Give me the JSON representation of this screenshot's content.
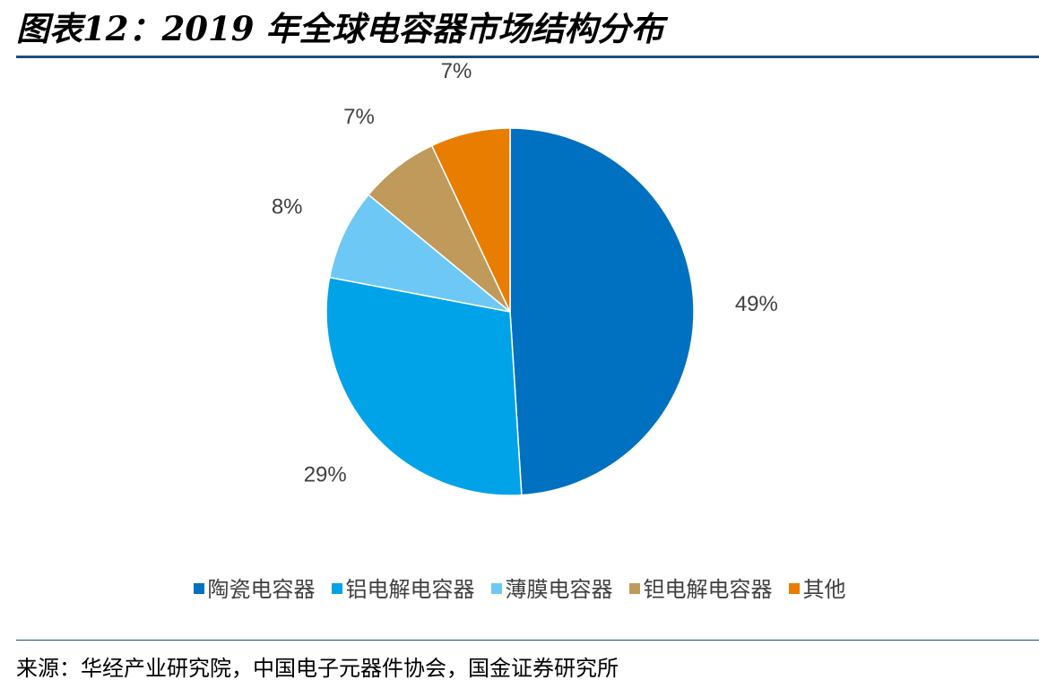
{
  "header": {
    "title": "图表12：2019 年全球电容器市场结构分布"
  },
  "chart_data": {
    "type": "pie",
    "categories": [
      "陶瓷电容器",
      "铝电解电容器",
      "薄膜电容器",
      "钽电解电容器",
      "其他"
    ],
    "values": [
      49,
      29,
      8,
      7,
      7
    ],
    "data_labels": [
      "49%",
      "29%",
      "8%",
      "7%",
      "7%"
    ],
    "colors": [
      "#0070c0",
      "#00a3e8",
      "#6dc8f5",
      "#c09a5b",
      "#e87d00"
    ],
    "legend_position": "bottom",
    "start_angle_deg": 0,
    "direction": "clockwise"
  },
  "footer": {
    "source": "来源：华经产业研究院，中国电子元器件协会，国金证券研究所"
  }
}
